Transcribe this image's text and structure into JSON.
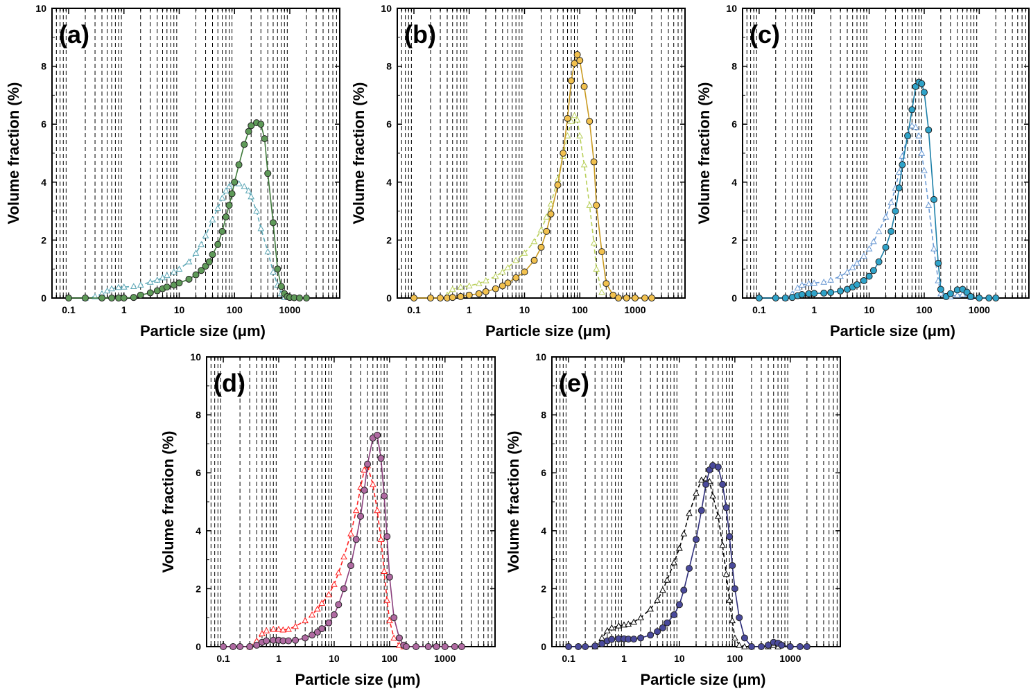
{
  "figure": {
    "colors": {
      "axis": "#000000",
      "grid": "#000000",
      "background": "#ffffff"
    }
  },
  "chart_data": [
    {
      "panel": "(a)",
      "type": "line",
      "xscale": "log",
      "xlim": [
        0.05,
        8000
      ],
      "ylim": [
        0,
        10
      ],
      "xlabel": "Particle size (μm)",
      "ylabel": "Volume fraction (%)",
      "xticks": [
        0.1,
        1,
        10,
        100,
        1000
      ],
      "xtick_labels": [
        "0.1",
        "1",
        "10",
        "100",
        "1000"
      ],
      "yticks": [
        0,
        2,
        4,
        6,
        8,
        10
      ],
      "grid": "vertical dashed at minor log ticks",
      "series": [
        {
          "marker": "circle",
          "line": "solid",
          "color": "#3e7a3a",
          "fill": "#5e9a58",
          "x": [
            0.1,
            0.2,
            0.4,
            0.6,
            0.8,
            1,
            1.5,
            2,
            3,
            4,
            5,
            6,
            8,
            10,
            15,
            20,
            25,
            30,
            35,
            40,
            50,
            60,
            70,
            80,
            90,
            100,
            120,
            150,
            180,
            200,
            250,
            300,
            350,
            400,
            500,
            600,
            700,
            800,
            900,
            1000,
            1200,
            1500,
            2000
          ],
          "y": [
            0,
            0,
            0,
            0,
            0,
            0,
            0.02,
            0.1,
            0.18,
            0.25,
            0.32,
            0.38,
            0.45,
            0.52,
            0.65,
            0.8,
            0.95,
            1.1,
            1.25,
            1.5,
            1.85,
            2.3,
            2.8,
            3.2,
            3.6,
            4.0,
            4.6,
            5.3,
            5.75,
            5.95,
            6.05,
            6.0,
            5.5,
            4.3,
            2.6,
            1.0,
            0.4,
            0.15,
            0.05,
            0.02,
            0.01,
            0,
            0
          ]
        },
        {
          "marker": "triangle-open",
          "line": "dashed",
          "color": "#5aa6b5",
          "x": [
            0.2,
            0.3,
            0.4,
            0.5,
            0.6,
            0.8,
            1,
            1.5,
            2,
            3,
            4,
            5,
            6,
            8,
            10,
            15,
            20,
            25,
            30,
            40,
            50,
            60,
            70,
            80,
            90,
            100,
            120,
            150,
            180,
            200,
            250,
            300,
            400,
            500,
            600,
            700,
            800
          ],
          "y": [
            0,
            0.05,
            0.15,
            0.25,
            0.32,
            0.37,
            0.38,
            0.4,
            0.45,
            0.55,
            0.62,
            0.7,
            0.78,
            0.9,
            1.0,
            1.25,
            1.55,
            1.85,
            2.15,
            2.7,
            3.1,
            3.45,
            3.7,
            3.85,
            3.95,
            4.0,
            3.95,
            3.85,
            3.7,
            3.5,
            3.0,
            2.4,
            1.6,
            0.9,
            0.45,
            0.15,
            0.02
          ]
        }
      ]
    },
    {
      "panel": "(b)",
      "type": "line",
      "xscale": "log",
      "xlim": [
        0.05,
        8000
      ],
      "ylim": [
        0,
        10
      ],
      "xlabel": "Particle size (μm)",
      "ylabel": "Volume fraction (%)",
      "xticks": [
        0.1,
        1,
        10,
        100,
        1000
      ],
      "xtick_labels": [
        "0.1",
        "1",
        "10",
        "100",
        "1000"
      ],
      "yticks": [
        0,
        2,
        4,
        6,
        8,
        10
      ],
      "grid": "vertical dashed at minor log ticks",
      "series": [
        {
          "marker": "circle",
          "line": "solid",
          "color": "#c99a20",
          "fill": "#f2c14e",
          "x": [
            0.1,
            0.2,
            0.3,
            0.4,
            0.5,
            0.7,
            1,
            1.5,
            2,
            3,
            4,
            5,
            7,
            10,
            15,
            20,
            25,
            30,
            40,
            50,
            60,
            70,
            80,
            90,
            100,
            120,
            150,
            180,
            200,
            250,
            300,
            400,
            500,
            700,
            1000,
            1500,
            2000
          ],
          "y": [
            0,
            0,
            0,
            0,
            0.02,
            0.05,
            0.1,
            0.15,
            0.22,
            0.32,
            0.42,
            0.52,
            0.7,
            0.9,
            1.3,
            1.75,
            2.3,
            2.9,
            3.9,
            5.0,
            6.2,
            7.5,
            8.1,
            8.4,
            8.2,
            7.3,
            6.1,
            4.7,
            3.2,
            1.6,
            0.5,
            0.1,
            0,
            0,
            0,
            0,
            0
          ]
        },
        {
          "marker": "triangle-open",
          "line": "dashed",
          "color": "#b8cf5a",
          "x": [
            0.4,
            0.5,
            0.7,
            1,
            1.5,
            2,
            3,
            4,
            5,
            7,
            10,
            15,
            20,
            25,
            30,
            40,
            50,
            60,
            70,
            80,
            90,
            100,
            120,
            150,
            180,
            200,
            250
          ],
          "y": [
            0.1,
            0.3,
            0.38,
            0.42,
            0.5,
            0.6,
            0.75,
            0.9,
            1.05,
            1.3,
            1.55,
            1.95,
            2.35,
            2.8,
            3.25,
            4.1,
            4.9,
            5.6,
            6.1,
            6.3,
            6.15,
            5.6,
            4.6,
            3.2,
            1.9,
            1.0,
            0.2
          ]
        }
      ]
    },
    {
      "panel": "(c)",
      "type": "line",
      "xscale": "log",
      "xlim": [
        0.05,
        8000
      ],
      "ylim": [
        0,
        10
      ],
      "xlabel": "Particle size (μm)",
      "ylabel": "Volume fraction (%)",
      "xticks": [
        0.1,
        1,
        10,
        100,
        1000
      ],
      "xtick_labels": [
        "0.1",
        "1",
        "10",
        "100",
        "1000"
      ],
      "yticks": [
        0,
        2,
        4,
        6,
        8,
        10
      ],
      "grid": "vertical dashed at minor log ticks",
      "series": [
        {
          "marker": "circle",
          "line": "solid",
          "color": "#1b7fa8",
          "fill": "#2fa3c9",
          "x": [
            0.1,
            0.2,
            0.3,
            0.4,
            0.5,
            0.6,
            0.8,
            1,
            1.5,
            2,
            3,
            4,
            5,
            6,
            8,
            10,
            12,
            15,
            20,
            25,
            30,
            35,
            40,
            50,
            60,
            70,
            80,
            90,
            100,
            120,
            150,
            180,
            200,
            250,
            300,
            400,
            500,
            600,
            700,
            1000,
            1500,
            2000
          ],
          "y": [
            0,
            0,
            0,
            0.02,
            0.08,
            0.12,
            0.15,
            0.16,
            0.17,
            0.19,
            0.24,
            0.3,
            0.38,
            0.46,
            0.6,
            0.75,
            0.95,
            1.25,
            1.75,
            2.3,
            3.0,
            3.8,
            4.6,
            5.6,
            6.5,
            7.3,
            7.45,
            7.4,
            7.1,
            5.8,
            3.4,
            1.2,
            0.3,
            0.05,
            0.15,
            0.28,
            0.3,
            0.2,
            0.05,
            0,
            0,
            0
          ]
        },
        {
          "marker": "triangle-open",
          "line": "dashed",
          "color": "#6b9ad4",
          "x": [
            0.3,
            0.4,
            0.5,
            0.6,
            0.8,
            1,
            1.5,
            2,
            3,
            4,
            5,
            6,
            8,
            10,
            12,
            15,
            20,
            25,
            30,
            35,
            40,
            50,
            60,
            70,
            80,
            90,
            100,
            120,
            150,
            180,
            200,
            300,
            400,
            500,
            700
          ],
          "y": [
            0,
            0.15,
            0.35,
            0.45,
            0.5,
            0.52,
            0.55,
            0.62,
            0.75,
            0.9,
            1.05,
            1.2,
            1.45,
            1.7,
            1.95,
            2.3,
            2.8,
            3.3,
            3.8,
            4.35,
            4.9,
            5.6,
            5.95,
            5.9,
            5.6,
            5.0,
            4.4,
            3.2,
            1.7,
            0.6,
            0.15,
            0.05,
            0.1,
            0.12,
            0.02
          ]
        }
      ]
    },
    {
      "panel": "(d)",
      "type": "line",
      "xscale": "log",
      "xlim": [
        0.05,
        8000
      ],
      "ylim": [
        0,
        10
      ],
      "xlabel": "Particle size (μm)",
      "ylabel": "Volume fraction (%)",
      "xticks": [
        0.1,
        1,
        10,
        100,
        1000
      ],
      "xtick_labels": [
        "0.1",
        "1",
        "10",
        "100",
        "1000"
      ],
      "yticks": [
        0,
        2,
        4,
        6,
        8,
        10
      ],
      "grid": "vertical dashed at minor log ticks",
      "series": [
        {
          "marker": "circle",
          "line": "solid",
          "color": "#8a3f7c",
          "fill": "#b06aa2",
          "x": [
            0.1,
            0.15,
            0.2,
            0.3,
            0.4,
            0.5,
            0.6,
            0.8,
            1,
            1.2,
            1.5,
            2,
            3,
            4,
            5,
            6,
            8,
            10,
            12,
            15,
            20,
            25,
            30,
            35,
            40,
            50,
            60,
            70,
            80,
            90,
            100,
            120,
            150,
            180,
            200,
            300,
            500,
            700,
            1000,
            1500,
            2000
          ],
          "y": [
            0,
            0,
            0,
            0,
            0.05,
            0.15,
            0.2,
            0.22,
            0.22,
            0.2,
            0.2,
            0.22,
            0.3,
            0.4,
            0.5,
            0.62,
            0.82,
            1.1,
            1.45,
            2.0,
            2.8,
            3.7,
            4.5,
            5.4,
            6.3,
            7.2,
            7.3,
            6.5,
            5.2,
            3.8,
            2.4,
            1.0,
            0.3,
            0.05,
            0,
            0,
            0,
            0,
            0,
            0,
            0
          ]
        },
        {
          "marker": "triangle-open",
          "line": "dashed",
          "color": "#ff2020",
          "x": [
            0.3,
            0.4,
            0.5,
            0.6,
            0.8,
            1,
            1.2,
            1.5,
            2,
            3,
            4,
            5,
            6,
            8,
            10,
            12,
            15,
            20,
            25,
            30,
            35,
            40,
            50,
            60,
            70,
            80,
            90,
            100,
            120,
            150,
            180
          ],
          "y": [
            0,
            0.2,
            0.45,
            0.55,
            0.6,
            0.6,
            0.58,
            0.6,
            0.7,
            0.9,
            1.1,
            1.3,
            1.5,
            1.8,
            2.15,
            2.55,
            3.1,
            3.9,
            4.7,
            5.5,
            6.1,
            6.25,
            5.6,
            4.7,
            3.7,
            2.6,
            1.6,
            0.9,
            0.3,
            0.05,
            0
          ]
        }
      ]
    },
    {
      "panel": "(e)",
      "type": "line",
      "xscale": "log",
      "xlim": [
        0.05,
        8000
      ],
      "ylim": [
        0,
        10
      ],
      "xlabel": "Particle size (μm)",
      "ylabel": "Volume fraction (%)",
      "xticks": [
        0.1,
        1,
        10,
        100,
        1000
      ],
      "xtick_labels": [
        "0.1",
        "1",
        "10",
        "100",
        "1000"
      ],
      "yticks": [
        0,
        2,
        4,
        6,
        8,
        10
      ],
      "grid": "vertical dashed at minor log ticks",
      "series": [
        {
          "marker": "circle",
          "line": "solid",
          "color": "#2e2e7a",
          "fill": "#4a4a9c",
          "x": [
            0.1,
            0.15,
            0.2,
            0.3,
            0.4,
            0.5,
            0.6,
            0.8,
            1,
            1.2,
            1.5,
            2,
            3,
            4,
            5,
            6,
            8,
            10,
            12,
            15,
            20,
            25,
            30,
            35,
            40,
            50,
            60,
            70,
            80,
            90,
            100,
            120,
            150,
            200,
            300,
            400,
            500,
            600,
            700,
            1000,
            1500,
            2000
          ],
          "y": [
            0,
            0,
            0,
            0.02,
            0.1,
            0.2,
            0.25,
            0.27,
            0.27,
            0.26,
            0.26,
            0.3,
            0.4,
            0.52,
            0.65,
            0.82,
            1.1,
            1.45,
            1.95,
            2.7,
            3.7,
            4.7,
            5.6,
            6.1,
            6.25,
            6.2,
            5.6,
            4.8,
            3.8,
            2.8,
            2.0,
            1.0,
            0.3,
            0,
            0,
            0.05,
            0.15,
            0.12,
            0.05,
            0,
            0,
            0
          ]
        },
        {
          "marker": "triangle-open",
          "line": "dashed",
          "color": "#000000",
          "x": [
            0.3,
            0.4,
            0.5,
            0.6,
            0.8,
            1,
            1.2,
            1.5,
            2,
            3,
            4,
            5,
            6,
            8,
            10,
            12,
            15,
            20,
            25,
            30,
            35,
            40,
            50,
            60,
            70,
            80,
            90,
            100,
            120,
            150,
            200,
            400,
            500,
            600
          ],
          "y": [
            0,
            0.3,
            0.55,
            0.65,
            0.72,
            0.75,
            0.78,
            0.85,
            1.0,
            1.3,
            1.6,
            1.95,
            2.3,
            2.9,
            3.4,
            3.9,
            4.6,
            5.3,
            5.75,
            5.8,
            5.7,
            5.2,
            4.5,
            3.5,
            2.5,
            1.6,
            0.9,
            0.3,
            0.05,
            0,
            0,
            0,
            0.05,
            0
          ]
        }
      ]
    }
  ]
}
